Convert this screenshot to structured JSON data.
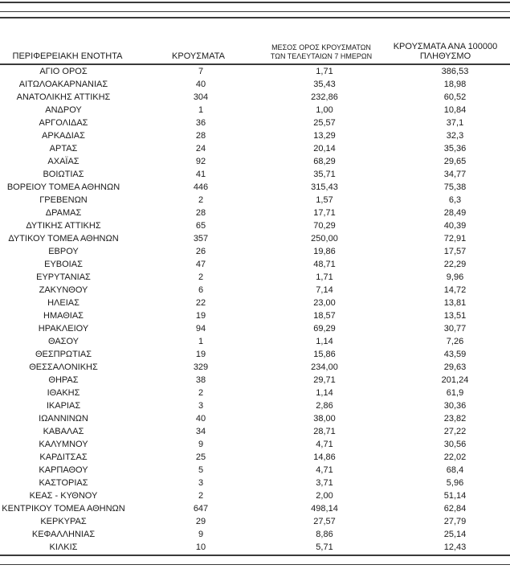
{
  "page": {
    "background": "#ffffff",
    "text_color": "#1a1a1a",
    "rule_color": "#3a3a3a"
  },
  "table": {
    "headers": {
      "region": "ΠΕΡΙΦΕΡΕΙΑΚΗ ΕΝΟΤΗΤΑ",
      "cases": "ΚΡΟΥΣΜΑΤΑ",
      "avg7_line1": "ΜΕΣΟΣ ΟΡΟΣ ΚΡΟΥΣΜΑΤΩΝ",
      "avg7_line2": "ΤΩΝ ΤΕΛΕΥΤΑΙΩΝ 7 ΗΜΕΡΩΝ",
      "per100k_line1": "ΚΡΟΥΣΜΑΤΑ ΑΝΑ 100000",
      "per100k_line2": "ΠΛΗΘΥΣΜΟ"
    },
    "rows": [
      [
        "ΑΓΙΟ ΟΡΟΣ",
        "7",
        "1,71",
        "386,53"
      ],
      [
        "ΑΙΤΩΛΟΑΚΑΡΝΑΝΙΑΣ",
        "40",
        "35,43",
        "18,98"
      ],
      [
        "ΑΝΑΤΟΛΙΚΗΣ ΑΤΤΙΚΗΣ",
        "304",
        "232,86",
        "60,52"
      ],
      [
        "ΑΝΔΡΟΥ",
        "1",
        "1,00",
        "10,84"
      ],
      [
        "ΑΡΓΟΛΙΔΑΣ",
        "36",
        "25,57",
        "37,1"
      ],
      [
        "ΑΡΚΑΔΙΑΣ",
        "28",
        "13,29",
        "32,3"
      ],
      [
        "ΑΡΤΑΣ",
        "24",
        "20,14",
        "35,36"
      ],
      [
        "ΑΧΑΪΑΣ",
        "92",
        "68,29",
        "29,65"
      ],
      [
        "ΒΟΙΩΤΙΑΣ",
        "41",
        "35,71",
        "34,77"
      ],
      [
        "ΒΟΡΕΙΟΥ ΤΟΜΕΑ ΑΘΗΝΩΝ",
        "446",
        "315,43",
        "75,38"
      ],
      [
        "ΓΡΕΒΕΝΩΝ",
        "2",
        "1,57",
        "6,3"
      ],
      [
        "ΔΡΑΜΑΣ",
        "28",
        "17,71",
        "28,49"
      ],
      [
        "ΔΥΤΙΚΗΣ ΑΤΤΙΚΗΣ",
        "65",
        "70,29",
        "40,39"
      ],
      [
        "ΔΥΤΙΚΟΥ ΤΟΜΕΑ ΑΘΗΝΩΝ",
        "357",
        "250,00",
        "72,91"
      ],
      [
        "ΕΒΡΟΥ",
        "26",
        "19,86",
        "17,57"
      ],
      [
        "ΕΥΒΟΙΑΣ",
        "47",
        "48,71",
        "22,29"
      ],
      [
        "ΕΥΡΥΤΑΝΙΑΣ",
        "2",
        "1,71",
        "9,96"
      ],
      [
        "ΖΑΚΥΝΘΟΥ",
        "6",
        "7,14",
        "14,72"
      ],
      [
        "ΗΛΕΙΑΣ",
        "22",
        "23,00",
        "13,81"
      ],
      [
        "ΗΜΑΘΙΑΣ",
        "19",
        "18,57",
        "13,51"
      ],
      [
        "ΗΡΑΚΛΕΙΟΥ",
        "94",
        "69,29",
        "30,77"
      ],
      [
        "ΘΑΣΟΥ",
        "1",
        "1,14",
        "7,26"
      ],
      [
        "ΘΕΣΠΡΩΤΙΑΣ",
        "19",
        "15,86",
        "43,59"
      ],
      [
        "ΘΕΣΣΑΛΟΝΙΚΗΣ",
        "329",
        "234,00",
        "29,63"
      ],
      [
        "ΘΗΡΑΣ",
        "38",
        "29,71",
        "201,24"
      ],
      [
        "ΙΘΑΚΗΣ",
        "2",
        "1,14",
        "61,9"
      ],
      [
        "ΙΚΑΡΙΑΣ",
        "3",
        "2,86",
        "30,36"
      ],
      [
        "ΙΩΑΝΝΙΝΩΝ",
        "40",
        "38,00",
        "23,82"
      ],
      [
        "ΚΑΒΑΛΑΣ",
        "34",
        "28,71",
        "27,22"
      ],
      [
        "ΚΑΛΥΜΝΟΥ",
        "9",
        "4,71",
        "30,56"
      ],
      [
        "ΚΑΡΔΙΤΣΑΣ",
        "25",
        "14,86",
        "22,02"
      ],
      [
        "ΚΑΡΠΑΘΟΥ",
        "5",
        "4,71",
        "68,4"
      ],
      [
        "ΚΑΣΤΟΡΙΑΣ",
        "3",
        "3,71",
        "5,96"
      ],
      [
        "ΚΕΑΣ - ΚΥΘΝΟΥ",
        "2",
        "2,00",
        "51,14"
      ],
      [
        "ΚΕΝΤΡΙΚΟΥ ΤΟΜΕΑ ΑΘΗΝΩΝ",
        "647",
        "498,14",
        "62,84"
      ],
      [
        "ΚΕΡΚΥΡΑΣ",
        "29",
        "27,57",
        "27,79"
      ],
      [
        "ΚΕΦΑΛΛΗΝΙΑΣ",
        "9",
        "8,86",
        "25,14"
      ],
      [
        "ΚΙΛΚΙΣ",
        "10",
        "5,71",
        "12,43"
      ]
    ]
  }
}
